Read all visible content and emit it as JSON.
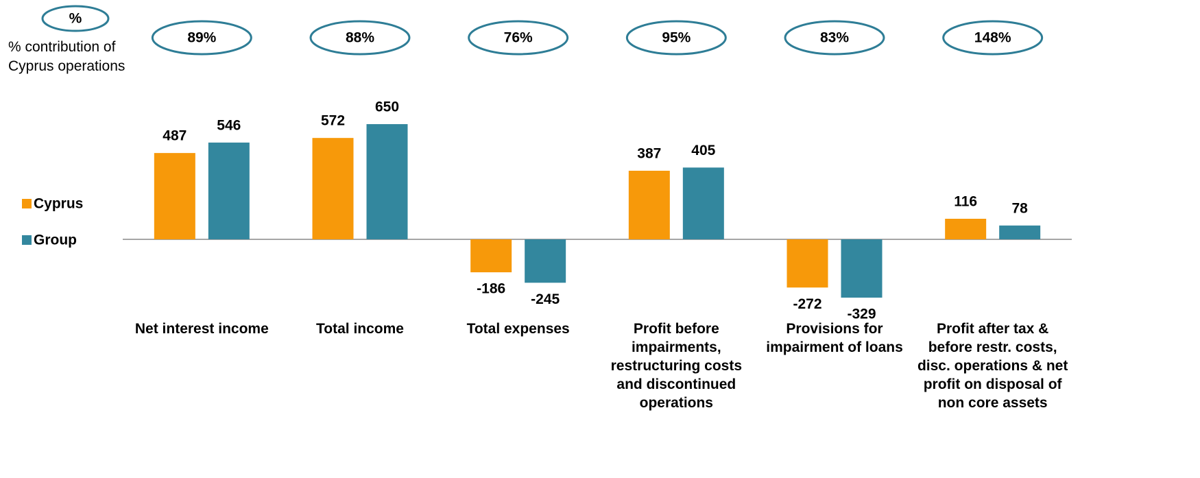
{
  "chart_data": {
    "type": "bar",
    "categories": [
      "Net interest income",
      "Total income",
      "Total expenses",
      "Profit before impairments, restructuring costs and discontinued operations",
      "Provisions for impairment of loans",
      "Profit after tax & before restr. costs, disc. operations & net profit on disposal of non core assets"
    ],
    "series": [
      {
        "name": "Cyprus",
        "color": "#f7990a",
        "values": [
          487,
          572,
          -186,
          387,
          -272,
          116
        ]
      },
      {
        "name": "Group",
        "color": "#33879e",
        "values": [
          546,
          650,
          -245,
          405,
          -329,
          78
        ]
      }
    ],
    "contribution": {
      "header": "%",
      "label": "% contribution of Cyprus operations",
      "values": [
        89,
        88,
        76,
        95,
        83,
        148
      ],
      "value_labels": [
        "89%",
        "88%",
        "76%",
        "95%",
        "83%",
        "148%"
      ]
    }
  }
}
